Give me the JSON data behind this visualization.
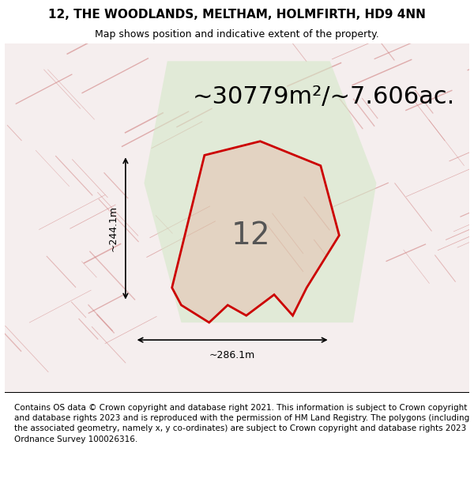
{
  "title": "12, THE WOODLANDS, MELTHAM, HOLMFIRTH, HD9 4NN",
  "subtitle": "Map shows position and indicative extent of the property.",
  "area_text": "~30779m²/~7.606ac.",
  "label": "12",
  "dim_height": "~244.1m",
  "dim_width": "~286.1m",
  "footer": "Contains OS data © Crown copyright and database right 2021. This information is subject to Crown copyright and database rights 2023 and is reproduced with the permission of HM Land Registry. The polygons (including the associated geometry, namely x, y co-ordinates) are subject to Crown copyright and database rights 2023 Ordnance Survey 100026316.",
  "bg_map_color": "#f5f0f0",
  "map_bg": "#f5eeee",
  "polygon_color": "#cc0000",
  "polygon_fill": "#dd000022",
  "title_fontsize": 11,
  "subtitle_fontsize": 9,
  "area_fontsize": 22,
  "label_fontsize": 28,
  "footer_fontsize": 7.5,
  "fig_width": 6.0,
  "fig_height": 6.25
}
